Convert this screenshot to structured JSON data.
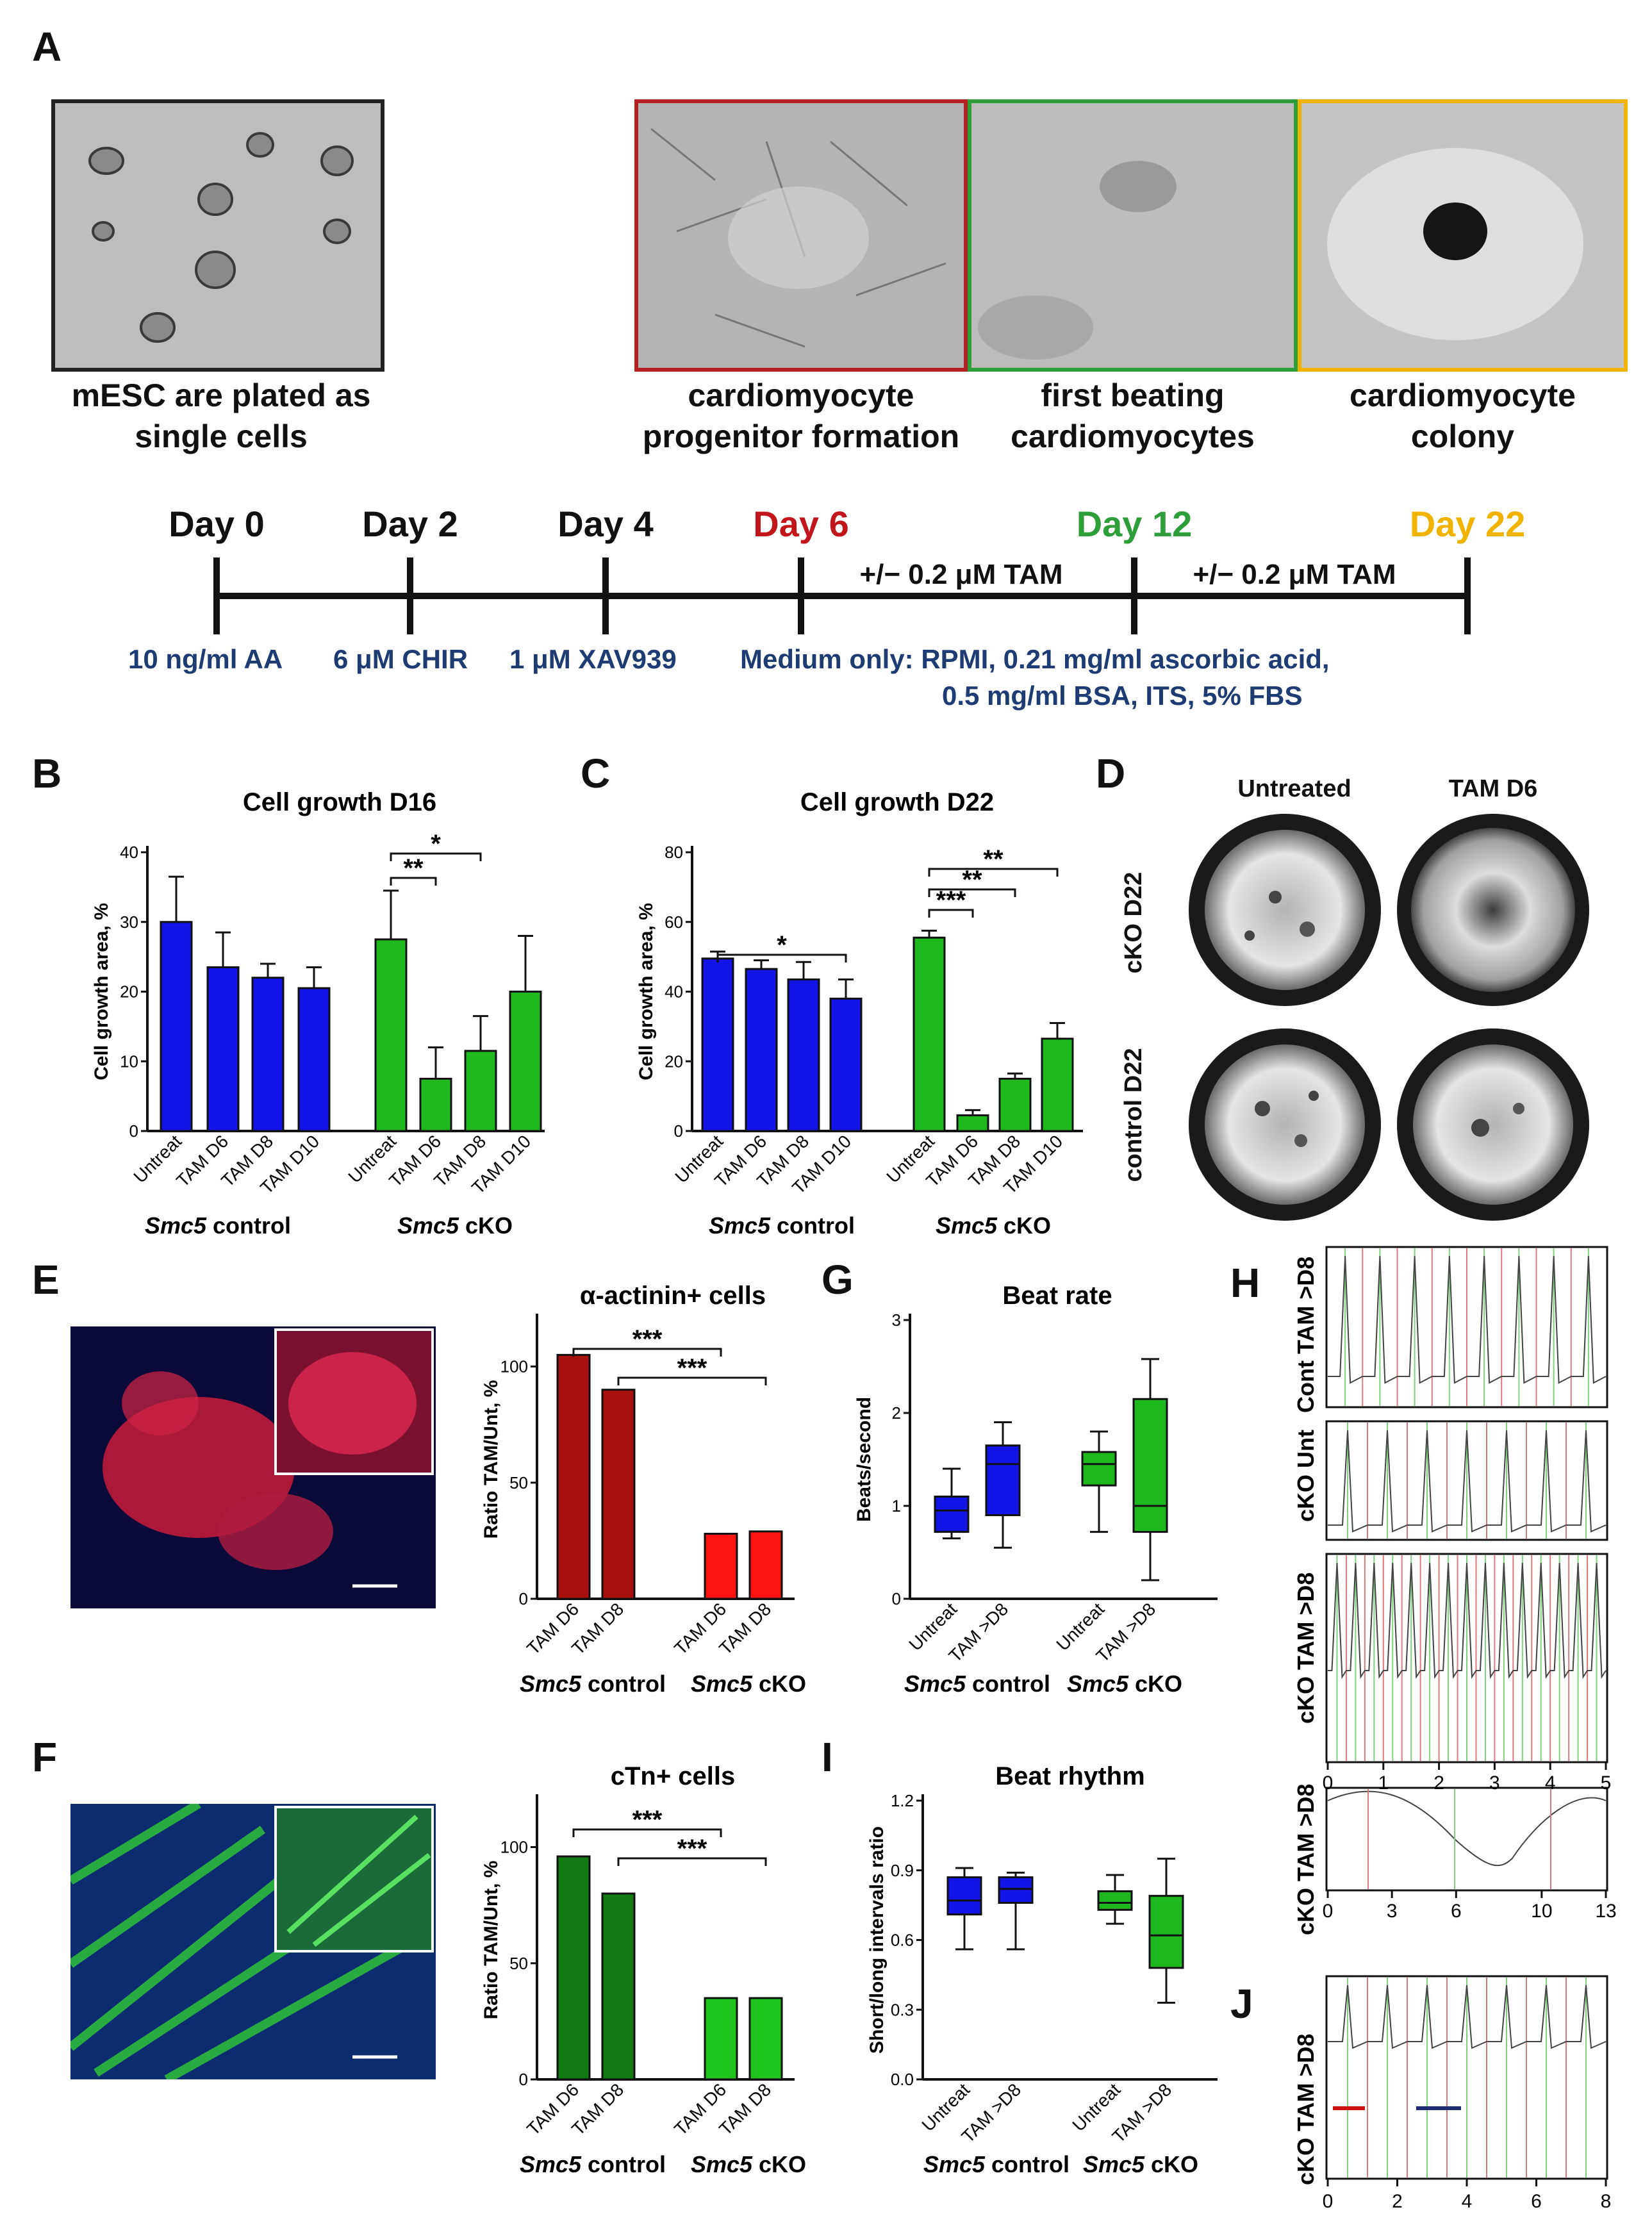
{
  "panel_letters": [
    "A",
    "B",
    "C",
    "D",
    "E",
    "F",
    "G",
    "H",
    "I",
    "J"
  ],
  "panelA": {
    "images": [
      {
        "caption_line1": "mESC are plated as",
        "caption_line2": "single cells",
        "border": "#222222"
      },
      {
        "caption_line1": "cardiomyocyte",
        "caption_line2": "progenitor formation",
        "border": "#b22222"
      },
      {
        "caption_line1": "first beating",
        "caption_line2": "cardiomyocytes",
        "border": "#2e9e3a"
      },
      {
        "caption_line1": "cardiomyocyte",
        "caption_line2": "colony",
        "border": "#f0b400"
      }
    ],
    "timeline": {
      "days": [
        {
          "label": "Day 0",
          "color": "#111111"
        },
        {
          "label": "Day 2",
          "color": "#111111"
        },
        {
          "label": "Day 4",
          "color": "#111111"
        },
        {
          "label": "Day 6",
          "color": "#c0161c"
        },
        {
          "label": "Day 12",
          "color": "#2e9e3a"
        },
        {
          "label": "Day 22",
          "color": "#f0b400"
        }
      ],
      "tam_label_1": "+/− 0.2 μM TAM",
      "tam_label_2": "+/− 0.2 μM TAM",
      "reagents": [
        "10 ng/ml AA",
        "6 μM CHIR",
        "1 μM XAV939"
      ],
      "medium_line1": "Medium only: RPMI, 0.21 mg/ml ascorbic acid,",
      "medium_line2": "0.5 mg/ml BSA, ITS, 5% FBS"
    }
  },
  "panelD": {
    "col_labels": [
      "Untreated",
      "TAM D6"
    ],
    "row_labels": [
      "cKO D22",
      "control D22"
    ]
  },
  "panelH": {
    "row_labels": [
      "Cont TAM >D8",
      "cKO Unt",
      "cKO TAM >D8",
      "cKO TAM >D8"
    ],
    "xticks_main": [
      "0",
      "1",
      "2",
      "3",
      "4",
      "5"
    ],
    "xticks_zoom": [
      "0",
      "3",
      "6",
      "10",
      "13"
    ]
  },
  "panelJ": {
    "row_label": "cKO TAM >D8",
    "xticks": [
      "0",
      "2",
      "4",
      "6",
      "8"
    ]
  },
  "group_labels": {
    "control_prefix": "Smc5",
    "control_suffix": " control",
    "cko_prefix": "Smc5",
    "cko_suffix": " cKO"
  },
  "chart_data": [
    {
      "id": "B",
      "type": "bar",
      "title": "Cell growth D16",
      "ylabel": "Cell growth area, %",
      "ylim": [
        0,
        40
      ],
      "yticks": [
        "0",
        "10",
        "20",
        "30",
        "40"
      ],
      "categories": [
        "Untreat",
        "TAM D6",
        "TAM D8",
        "TAM D10",
        "Untreat",
        "TAM D6",
        "TAM D8",
        "TAM D10"
      ],
      "values": [
        30,
        23.5,
        22,
        20.5,
        27.5,
        7.5,
        11.5,
        20
      ],
      "errors": [
        6.5,
        5,
        2,
        3,
        7,
        4.5,
        5,
        8
      ],
      "colors": [
        "#1414e6",
        "#1414e6",
        "#1414e6",
        "#1414e6",
        "#1fb81f",
        "#1fb81f",
        "#1fb81f",
        "#1fb81f"
      ],
      "significance": [
        {
          "from": 4,
          "to": 5,
          "label": "**"
        },
        {
          "from": 4,
          "to": 6,
          "label": "*"
        }
      ]
    },
    {
      "id": "C",
      "type": "bar",
      "title": "Cell growth D22",
      "ylabel": "Cell growth area, %",
      "ylim": [
        0,
        80
      ],
      "yticks": [
        "0",
        "20",
        "40",
        "60",
        "80"
      ],
      "categories": [
        "Untreat",
        "TAM D6",
        "TAM D8",
        "TAM D10",
        "Untreat",
        "TAM D6",
        "TAM D8",
        "TAM D10"
      ],
      "values": [
        49.5,
        46.5,
        43.5,
        38,
        55.5,
        4.5,
        15,
        26.5
      ],
      "errors": [
        2,
        2.5,
        5,
        5.5,
        2,
        1.5,
        1.5,
        4.5
      ],
      "colors": [
        "#1414e6",
        "#1414e6",
        "#1414e6",
        "#1414e6",
        "#1fb81f",
        "#1fb81f",
        "#1fb81f",
        "#1fb81f"
      ],
      "significance": [
        {
          "from": 0,
          "to": 3,
          "label": "*"
        },
        {
          "from": 4,
          "to": 5,
          "label": "***"
        },
        {
          "from": 4,
          "to": 6,
          "label": "**"
        },
        {
          "from": 4,
          "to": 7,
          "label": "**"
        }
      ]
    },
    {
      "id": "E",
      "type": "bar",
      "title": "α-actinin+ cells",
      "ylabel": "Ratio TAM/Unt, %",
      "ylim": [
        0,
        120
      ],
      "yticks": [
        "0",
        "50",
        "100"
      ],
      "categories": [
        "TAM D6",
        "TAM D8",
        "TAM D6",
        "TAM D8"
      ],
      "values": [
        105,
        90,
        28,
        29
      ],
      "colors": [
        "#a80f0f",
        "#a80f0f",
        "#ff1414",
        "#ff1414"
      ],
      "significance": [
        {
          "from": 0,
          "to": 2,
          "label": "***"
        },
        {
          "from": 1,
          "to": 3,
          "label": "***"
        }
      ]
    },
    {
      "id": "F",
      "type": "bar",
      "title": "cTn+ cells",
      "ylabel": "Ratio TAM/Unt, %",
      "ylim": [
        0,
        120
      ],
      "yticks": [
        "0",
        "50",
        "100"
      ],
      "categories": [
        "TAM D6",
        "TAM D8",
        "TAM D6",
        "TAM D8"
      ],
      "values": [
        96,
        80,
        35,
        35
      ],
      "colors": [
        "#137a13",
        "#137a13",
        "#1fc41f",
        "#1fc41f"
      ],
      "significance": [
        {
          "from": 0,
          "to": 2,
          "label": "***"
        },
        {
          "from": 1,
          "to": 3,
          "label": "***"
        }
      ]
    },
    {
      "id": "G",
      "type": "box",
      "title": "Beat rate",
      "ylabel": "Beats/second",
      "ylim": [
        0,
        3
      ],
      "yticks": [
        "0",
        "1",
        "2",
        "3"
      ],
      "categories": [
        "Untreat",
        "TAM >D8",
        "Untreat",
        "TAM >D8"
      ],
      "boxes": [
        {
          "min": 0.65,
          "q1": 0.72,
          "median": 0.95,
          "q3": 1.1,
          "max": 1.4
        },
        {
          "min": 0.55,
          "q1": 0.9,
          "median": 1.45,
          "q3": 1.65,
          "max": 1.9
        },
        {
          "min": 0.72,
          "q1": 1.22,
          "median": 1.45,
          "q3": 1.58,
          "max": 1.8
        },
        {
          "min": 0.2,
          "q1": 0.72,
          "median": 1.0,
          "q3": 2.15,
          "max": 2.58
        }
      ],
      "colors": [
        "#1414e6",
        "#1414e6",
        "#1fb81f",
        "#1fb81f"
      ]
    },
    {
      "id": "I",
      "type": "box",
      "title": "Beat rhythm",
      "ylabel": "Short/long intervals ratio",
      "ylim": [
        0,
        1.2
      ],
      "yticks": [
        "0.0",
        "0.3",
        "0.6",
        "0.9",
        "1.2"
      ],
      "categories": [
        "Untreat",
        "TAM >D8",
        "Untreat",
        "TAM >D8"
      ],
      "boxes": [
        {
          "min": 0.56,
          "q1": 0.71,
          "median": 0.77,
          "q3": 0.87,
          "max": 0.91
        },
        {
          "min": 0.56,
          "q1": 0.76,
          "median": 0.82,
          "q3": 0.87,
          "max": 0.89
        },
        {
          "min": 0.67,
          "q1": 0.73,
          "median": 0.76,
          "q3": 0.81,
          "max": 0.88
        },
        {
          "min": 0.33,
          "q1": 0.48,
          "median": 0.62,
          "q3": 0.79,
          "max": 0.95
        }
      ],
      "colors": [
        "#1414e6",
        "#1414e6",
        "#1fb81f",
        "#1fb81f"
      ]
    }
  ]
}
